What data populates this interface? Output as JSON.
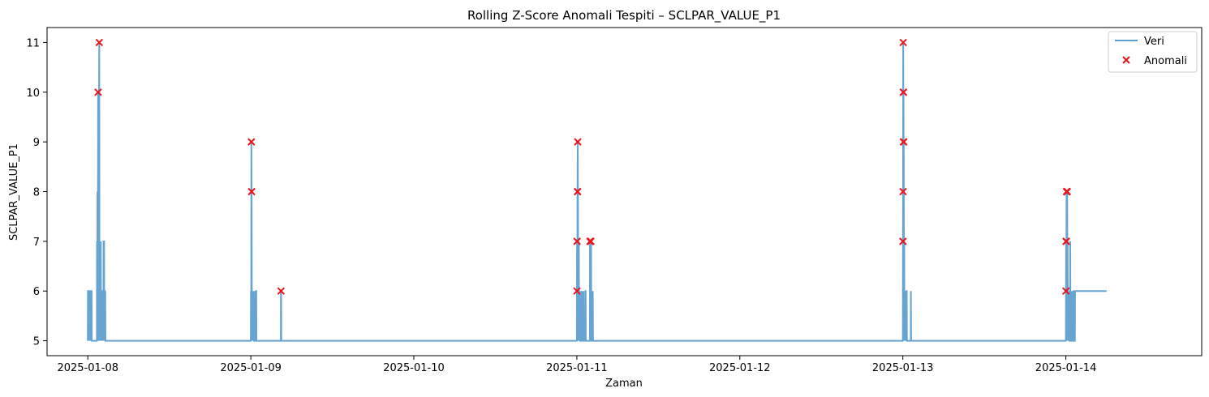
{
  "chart_data": {
    "type": "line",
    "title": "Rolling Z-Score Anomali Tespiti – SCLPAR_VALUE_P1",
    "xlabel": "Zaman",
    "ylabel": "SCLPAR_VALUE_P1",
    "x_ticks": [
      "2025-01-08",
      "2025-01-09",
      "2025-01-10",
      "2025-01-11",
      "2025-01-12",
      "2025-01-13",
      "2025-01-14"
    ],
    "y_ticks": [
      5,
      6,
      7,
      8,
      9,
      10,
      11
    ],
    "xlim": [
      "2025-01-07T18:00",
      "2025-01-14T20:00"
    ],
    "ylim": [
      4.7,
      11.3
    ],
    "grid": false,
    "legend_position": "top-right",
    "colors": {
      "data": "#5f9fcf",
      "anomaly": "#e8141e"
    },
    "series": [
      {
        "name": "Veri",
        "kind": "line",
        "points": [
          [
            "2025-01-08T00:00",
            5
          ],
          [
            "2025-01-08T00:01",
            6
          ],
          [
            "2025-01-08T00:03",
            6
          ],
          [
            "2025-01-08T00:04",
            5
          ],
          [
            "2025-01-08T00:05",
            6
          ],
          [
            "2025-01-08T00:07",
            5
          ],
          [
            "2025-01-08T00:08",
            6
          ],
          [
            "2025-01-08T00:10",
            5
          ],
          [
            "2025-01-08T00:11",
            6
          ],
          [
            "2025-01-08T00:14",
            6
          ],
          [
            "2025-01-08T00:15",
            5
          ],
          [
            "2025-01-08T00:16",
            6
          ],
          [
            "2025-01-08T00:18",
            5
          ],
          [
            "2025-01-08T00:20",
            6
          ],
          [
            "2025-01-08T00:22",
            6
          ],
          [
            "2025-01-08T00:23",
            5
          ],
          [
            "2025-01-08T00:25",
            6
          ],
          [
            "2025-01-08T00:27",
            5
          ],
          [
            "2025-01-08T00:29",
            6
          ],
          [
            "2025-01-08T00:31",
            5
          ],
          [
            "2025-01-08T00:32",
            6
          ],
          [
            "2025-01-08T00:34",
            6
          ],
          [
            "2025-01-08T00:35",
            5
          ],
          [
            "2025-01-08T01:20",
            5
          ],
          [
            "2025-01-08T01:21",
            7
          ],
          [
            "2025-01-08T01:23",
            5
          ],
          [
            "2025-01-08T01:25",
            8
          ],
          [
            "2025-01-08T01:27",
            5
          ],
          [
            "2025-01-08T01:29",
            7
          ],
          [
            "2025-01-08T01:31",
            10
          ],
          [
            "2025-01-08T01:33",
            6
          ],
          [
            "2025-01-08T01:35",
            8
          ],
          [
            "2025-01-08T01:37",
            5
          ],
          [
            "2025-01-08T01:39",
            10
          ],
          [
            "2025-01-08T01:41",
            11
          ],
          [
            "2025-01-08T01:43",
            6
          ],
          [
            "2025-01-08T01:45",
            5
          ],
          [
            "2025-01-08T01:47",
            6
          ],
          [
            "2025-01-08T01:49",
            5
          ],
          [
            "2025-01-08T01:51",
            6
          ],
          [
            "2025-01-08T01:53",
            5
          ],
          [
            "2025-01-08T01:55",
            7
          ],
          [
            "2025-01-08T01:57",
            5
          ],
          [
            "2025-01-08T01:59",
            6
          ],
          [
            "2025-01-08T02:02",
            5
          ],
          [
            "2025-01-08T02:05",
            6
          ],
          [
            "2025-01-08T02:07",
            5
          ],
          [
            "2025-01-08T02:09",
            6
          ],
          [
            "2025-01-08T02:15",
            6
          ],
          [
            "2025-01-08T02:17",
            5
          ],
          [
            "2025-01-08T02:19",
            7
          ],
          [
            "2025-01-08T02:24",
            7
          ],
          [
            "2025-01-08T02:26",
            5
          ],
          [
            "2025-01-08T02:28",
            6
          ],
          [
            "2025-01-08T02:30",
            6
          ],
          [
            "2025-01-08T02:32",
            5
          ],
          [
            "2025-01-08T02:34",
            6
          ],
          [
            "2025-01-08T02:36",
            5
          ],
          [
            "2025-01-09T00:00",
            5
          ],
          [
            "2025-01-09T00:01",
            6
          ],
          [
            "2025-01-09T00:03",
            5
          ],
          [
            "2025-01-09T00:05",
            9
          ],
          [
            "2025-01-09T00:07",
            8
          ],
          [
            "2025-01-09T00:09",
            6
          ],
          [
            "2025-01-09T00:11",
            5
          ],
          [
            "2025-01-09T00:13",
            6
          ],
          [
            "2025-01-09T00:15",
            5
          ],
          [
            "2025-01-09T00:17",
            6
          ],
          [
            "2025-01-09T00:19",
            5
          ],
          [
            "2025-01-09T00:21",
            6
          ],
          [
            "2025-01-09T00:23",
            5
          ],
          [
            "2025-01-09T00:26",
            6
          ],
          [
            "2025-01-09T00:28",
            5
          ],
          [
            "2025-01-09T00:40",
            5
          ],
          [
            "2025-01-09T00:41",
            6
          ],
          [
            "2025-01-09T00:43",
            5
          ],
          [
            "2025-01-09T00:45",
            6
          ],
          [
            "2025-01-09T00:48",
            6
          ],
          [
            "2025-01-09T00:50",
            5
          ],
          [
            "2025-01-09T04:25",
            5
          ],
          [
            "2025-01-09T04:26",
            6
          ],
          [
            "2025-01-09T04:28",
            6
          ],
          [
            "2025-01-09T04:29",
            5
          ],
          [
            "2025-01-11T00:00",
            5
          ],
          [
            "2025-01-11T00:01",
            6
          ],
          [
            "2025-01-11T00:02",
            7
          ],
          [
            "2025-01-11T00:04",
            5
          ],
          [
            "2025-01-11T00:06",
            8
          ],
          [
            "2025-01-11T00:08",
            9
          ],
          [
            "2025-01-11T00:10",
            8
          ],
          [
            "2025-01-11T00:12",
            6
          ],
          [
            "2025-01-11T00:14",
            7
          ],
          [
            "2025-01-11T00:16",
            5
          ],
          [
            "2025-01-11T00:18",
            7
          ],
          [
            "2025-01-11T00:20",
            5
          ],
          [
            "2025-01-11T00:22",
            6
          ],
          [
            "2025-01-11T00:24",
            5
          ],
          [
            "2025-01-11T00:26",
            6
          ],
          [
            "2025-01-11T00:28",
            5
          ],
          [
            "2025-01-11T00:40",
            5
          ],
          [
            "2025-01-11T00:41",
            6
          ],
          [
            "2025-01-11T00:43",
            5
          ],
          [
            "2025-01-11T00:46",
            6
          ],
          [
            "2025-01-11T00:48",
            5
          ],
          [
            "2025-01-11T00:55",
            5
          ],
          [
            "2025-01-11T00:56",
            6
          ],
          [
            "2025-01-11T00:58",
            5
          ],
          [
            "2025-01-11T01:00",
            6
          ],
          [
            "2025-01-11T01:02",
            5
          ],
          [
            "2025-01-11T01:15",
            5
          ],
          [
            "2025-01-11T01:16",
            6
          ],
          [
            "2025-01-11T01:18",
            6
          ],
          [
            "2025-01-11T01:19",
            5
          ],
          [
            "2025-01-11T01:55",
            5
          ],
          [
            "2025-01-11T01:56",
            7
          ],
          [
            "2025-01-11T01:58",
            6
          ],
          [
            "2025-01-11T02:00",
            7
          ],
          [
            "2025-01-11T02:02",
            5
          ],
          [
            "2025-01-11T02:04",
            6
          ],
          [
            "2025-01-11T02:06",
            7
          ],
          [
            "2025-01-11T02:08",
            5
          ],
          [
            "2025-01-11T02:20",
            5
          ],
          [
            "2025-01-11T02:21",
            6
          ],
          [
            "2025-01-11T02:23",
            5
          ],
          [
            "2025-01-13T00:00",
            5
          ],
          [
            "2025-01-13T00:01",
            7
          ],
          [
            "2025-01-13T00:02",
            8
          ],
          [
            "2025-01-13T00:03",
            11
          ],
          [
            "2025-01-13T00:04",
            10
          ],
          [
            "2025-01-13T00:05",
            9
          ],
          [
            "2025-01-13T00:06",
            10
          ],
          [
            "2025-01-13T00:07",
            8
          ],
          [
            "2025-01-13T00:08",
            9
          ],
          [
            "2025-01-13T00:10",
            6
          ],
          [
            "2025-01-13T00:12",
            7
          ],
          [
            "2025-01-13T00:14",
            5
          ],
          [
            "2025-01-13T00:16",
            6
          ],
          [
            "2025-01-13T00:18",
            5
          ],
          [
            "2025-01-13T00:20",
            6
          ],
          [
            "2025-01-13T00:22",
            5
          ],
          [
            "2025-01-13T00:24",
            6
          ],
          [
            "2025-01-13T00:26",
            5
          ],
          [
            "2025-01-13T00:28",
            6
          ],
          [
            "2025-01-13T00:30",
            5
          ],
          [
            "2025-01-13T00:32",
            6
          ],
          [
            "2025-01-13T00:34",
            6
          ],
          [
            "2025-01-13T00:36",
            5
          ],
          [
            "2025-01-13T01:10",
            5
          ],
          [
            "2025-01-13T01:11",
            6
          ],
          [
            "2025-01-13T01:13",
            5
          ],
          [
            "2025-01-14T00:00",
            5
          ],
          [
            "2025-01-14T00:01",
            6
          ],
          [
            "2025-01-14T00:02",
            7
          ],
          [
            "2025-01-14T00:04",
            5
          ],
          [
            "2025-01-14T00:06",
            8
          ],
          [
            "2025-01-14T00:08",
            7
          ],
          [
            "2025-01-14T00:10",
            5
          ],
          [
            "2025-01-14T00:12",
            8
          ],
          [
            "2025-01-14T00:14",
            6
          ],
          [
            "2025-01-14T00:16",
            7
          ],
          [
            "2025-01-14T00:18",
            5
          ],
          [
            "2025-01-14T00:20",
            6
          ],
          [
            "2025-01-14T00:22",
            5
          ],
          [
            "2025-01-14T00:24",
            6
          ],
          [
            "2025-01-14T00:26",
            5
          ],
          [
            "2025-01-14T00:30",
            6
          ],
          [
            "2025-01-14T00:32",
            5
          ],
          [
            "2025-01-14T00:38",
            5
          ],
          [
            "2025-01-14T00:39",
            7
          ],
          [
            "2025-01-14T00:41",
            5
          ],
          [
            "2025-01-14T00:50",
            5
          ],
          [
            "2025-01-14T00:51",
            6
          ],
          [
            "2025-01-14T00:53",
            5
          ],
          [
            "2025-01-14T01:00",
            5
          ],
          [
            "2025-01-14T01:01",
            6
          ],
          [
            "2025-01-14T01:03",
            5
          ],
          [
            "2025-01-14T01:08",
            5
          ],
          [
            "2025-01-14T01:09",
            6
          ],
          [
            "2025-01-14T01:11",
            6
          ],
          [
            "2025-01-14T01:12",
            5
          ],
          [
            "2025-01-14T01:20",
            5
          ],
          [
            "2025-01-14T01:21",
            6
          ],
          [
            "2025-01-14T06:00",
            6
          ]
        ]
      },
      {
        "name": "Anomali",
        "kind": "scatter",
        "points": [
          [
            "2025-01-08T01:31",
            10
          ],
          [
            "2025-01-08T01:41",
            11
          ],
          [
            "2025-01-09T00:05",
            9
          ],
          [
            "2025-01-09T00:07",
            8
          ],
          [
            "2025-01-09T04:27",
            6
          ],
          [
            "2025-01-11T00:01",
            6
          ],
          [
            "2025-01-11T00:02",
            7
          ],
          [
            "2025-01-11T00:06",
            8
          ],
          [
            "2025-01-11T00:07",
            8
          ],
          [
            "2025-01-11T00:08",
            9
          ],
          [
            "2025-01-11T01:56",
            7
          ],
          [
            "2025-01-11T02:04",
            7
          ],
          [
            "2025-01-13T00:01",
            7
          ],
          [
            "2025-01-13T00:02",
            8
          ],
          [
            "2025-01-13T00:03",
            11
          ],
          [
            "2025-01-13T00:04",
            10
          ],
          [
            "2025-01-13T00:05",
            9
          ],
          [
            "2025-01-13T00:06",
            10
          ],
          [
            "2025-01-13T00:08",
            9
          ],
          [
            "2025-01-14T00:01",
            6
          ],
          [
            "2025-01-14T00:02",
            7
          ],
          [
            "2025-01-14T00:04",
            7
          ],
          [
            "2025-01-14T00:06",
            8
          ],
          [
            "2025-01-14T00:10",
            8
          ],
          [
            "2025-01-14T00:12",
            8
          ]
        ]
      }
    ]
  }
}
